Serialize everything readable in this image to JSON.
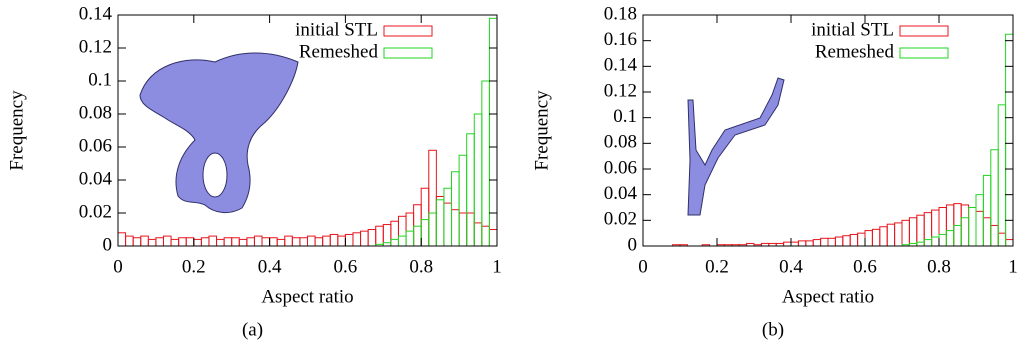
{
  "chart_data": [
    {
      "type": "histogram",
      "caption": "(a)",
      "xlabel": "Aspect ratio",
      "ylabel": "Frequency",
      "xlim": [
        0,
        1
      ],
      "xticks": [
        0,
        0.2,
        0.4,
        0.6,
        0.8,
        1
      ],
      "ylim": [
        0,
        0.14
      ],
      "yticks": [
        0,
        0.02,
        0.04,
        0.06,
        0.08,
        0.1,
        0.12,
        0.14
      ],
      "legend": "top-right",
      "bins": [
        0,
        0.02,
        0.04,
        0.06,
        0.08,
        0.1,
        0.12,
        0.14,
        0.16,
        0.18,
        0.2,
        0.22,
        0.24,
        0.26,
        0.28,
        0.3,
        0.32,
        0.34,
        0.36,
        0.38,
        0.4,
        0.42,
        0.44,
        0.46,
        0.48,
        0.5,
        0.52,
        0.54,
        0.56,
        0.58,
        0.6,
        0.62,
        0.64,
        0.66,
        0.68,
        0.7,
        0.72,
        0.74,
        0.76,
        0.78,
        0.8,
        0.82,
        0.84,
        0.86,
        0.88,
        0.9,
        0.92,
        0.94,
        0.96,
        0.98,
        1
      ],
      "series": [
        {
          "name": "initial STL",
          "color": "#e8141c",
          "values": [
            0.008,
            0.006,
            0.005,
            0.006,
            0.004,
            0.005,
            0.006,
            0.004,
            0.005,
            0.005,
            0.004,
            0.005,
            0.006,
            0.004,
            0.005,
            0.005,
            0.004,
            0.005,
            0.006,
            0.005,
            0.005,
            0.004,
            0.006,
            0.005,
            0.005,
            0.006,
            0.005,
            0.006,
            0.007,
            0.006,
            0.007,
            0.008,
            0.009,
            0.01,
            0.012,
            0.013,
            0.015,
            0.018,
            0.02,
            0.025,
            0.035,
            0.058,
            0.03,
            0.026,
            0.022,
            0.02,
            0.02,
            0.014,
            0.012,
            0.01
          ]
        },
        {
          "name": "Remeshed",
          "color": "#22d422",
          "values": [
            0,
            0,
            0,
            0,
            0,
            0,
            0,
            0,
            0,
            0,
            0,
            0,
            0,
            0,
            0,
            0,
            0,
            0,
            0,
            0,
            0,
            0,
            0,
            0,
            0,
            0,
            0,
            0,
            0,
            0,
            0,
            0,
            0,
            0,
            0.001,
            0.002,
            0.004,
            0.006,
            0.009,
            0.012,
            0.016,
            0.02,
            0.028,
            0.035,
            0.045,
            0.055,
            0.068,
            0.08,
            0.1,
            0.138
          ]
        }
      ]
    },
    {
      "type": "histogram",
      "caption": "(b)",
      "xlabel": "Aspect ratio",
      "ylabel": "Frequency",
      "xlim": [
        0,
        1
      ],
      "xticks": [
        0,
        0.2,
        0.4,
        0.6,
        0.8,
        1
      ],
      "ylim": [
        0,
        0.18
      ],
      "yticks": [
        0,
        0.02,
        0.04,
        0.06,
        0.08,
        0.1,
        0.12,
        0.14,
        0.16,
        0.18
      ],
      "legend": "top-right",
      "bins": [
        0,
        0.02,
        0.04,
        0.06,
        0.08,
        0.1,
        0.12,
        0.14,
        0.16,
        0.18,
        0.2,
        0.22,
        0.24,
        0.26,
        0.28,
        0.3,
        0.32,
        0.34,
        0.36,
        0.38,
        0.4,
        0.42,
        0.44,
        0.46,
        0.48,
        0.5,
        0.52,
        0.54,
        0.56,
        0.58,
        0.6,
        0.62,
        0.64,
        0.66,
        0.68,
        0.7,
        0.72,
        0.74,
        0.76,
        0.78,
        0.8,
        0.82,
        0.84,
        0.86,
        0.88,
        0.9,
        0.92,
        0.94,
        0.96,
        0.98,
        1
      ],
      "series": [
        {
          "name": "initial STL",
          "color": "#e8141c",
          "values": [
            0,
            0,
            0,
            0,
            0.001,
            0.001,
            0,
            0,
            0.001,
            0,
            0.001,
            0.001,
            0.001,
            0.001,
            0.002,
            0.001,
            0.002,
            0.002,
            0.002,
            0.003,
            0.003,
            0.004,
            0.004,
            0.005,
            0.006,
            0.006,
            0.007,
            0.008,
            0.009,
            0.01,
            0.012,
            0.013,
            0.015,
            0.017,
            0.018,
            0.02,
            0.022,
            0.024,
            0.026,
            0.028,
            0.03,
            0.032,
            0.033,
            0.032,
            0.03,
            0.027,
            0.022,
            0.016,
            0.01,
            0.005
          ]
        },
        {
          "name": "Remeshed",
          "color": "#22d422",
          "values": [
            0,
            0,
            0,
            0,
            0,
            0,
            0,
            0,
            0,
            0,
            0,
            0,
            0,
            0,
            0,
            0,
            0,
            0,
            0,
            0,
            0,
            0,
            0,
            0,
            0,
            0,
            0,
            0,
            0,
            0,
            0,
            0,
            0,
            0,
            0,
            0.001,
            0.002,
            0.003,
            0.005,
            0.007,
            0.009,
            0.012,
            0.016,
            0.022,
            0.03,
            0.04,
            0.055,
            0.075,
            0.11,
            0.165
          ]
        }
      ]
    }
  ]
}
